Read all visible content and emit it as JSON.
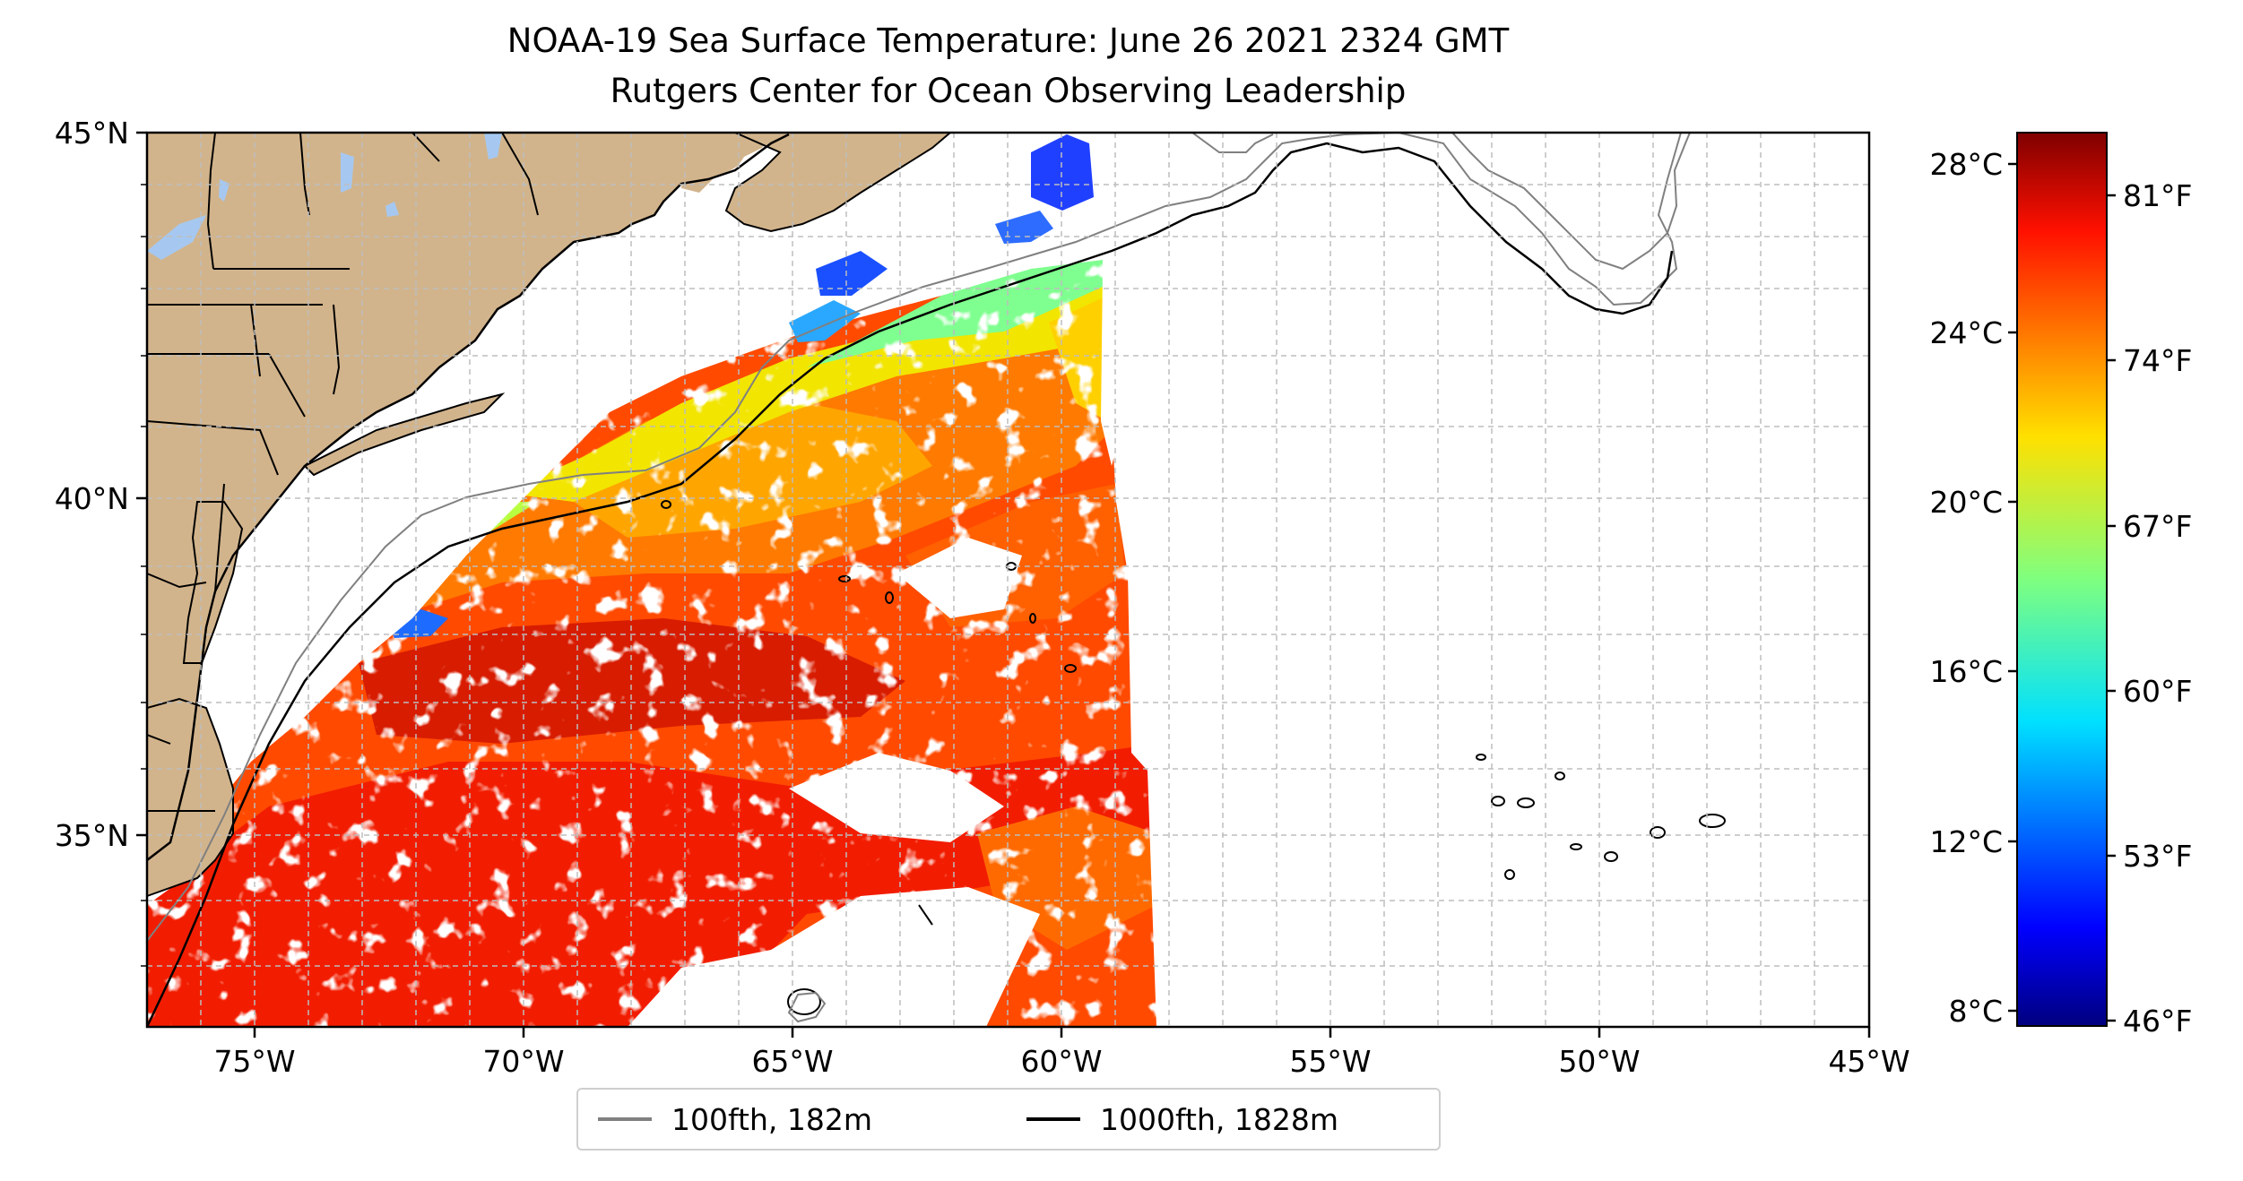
{
  "title": {
    "line1": "NOAA-19 Sea Surface Temperature: June 26 2021 2324 GMT",
    "line2": "Rutgers Center for Ocean Observing Leadership"
  },
  "map": {
    "lat_ticks": [
      "45°N",
      "40°N",
      "35°N"
    ],
    "lon_ticks": [
      "75°W",
      "70°W",
      "65°W",
      "60°W",
      "55°W",
      "50°W",
      "45°W"
    ],
    "lon_range": [
      -77,
      -45
    ],
    "lat_range": [
      32.2,
      45
    ],
    "gridlines": true,
    "colors": {
      "land": "#d2b48c",
      "lakes": "#a6c8f0",
      "isobath_100": "#808080",
      "isobath_1000": "#000000",
      "grid": "#bdbdbd"
    }
  },
  "legend": {
    "items": [
      {
        "label": "100fth, 182m",
        "color": "#808080"
      },
      {
        "label": "1000fth, 1828m",
        "color": "#000000"
      }
    ]
  },
  "colorbar": {
    "colormap": "jet",
    "celsius_ticks": [
      "28°C",
      "24°C",
      "20°C",
      "16°C",
      "12°C",
      "8°C"
    ],
    "fahrenheit_ticks": [
      "81°F",
      "74°F",
      "67°F",
      "60°F",
      "53°F",
      "46°F"
    ],
    "range_celsius": [
      7.6,
      28.7
    ]
  }
}
